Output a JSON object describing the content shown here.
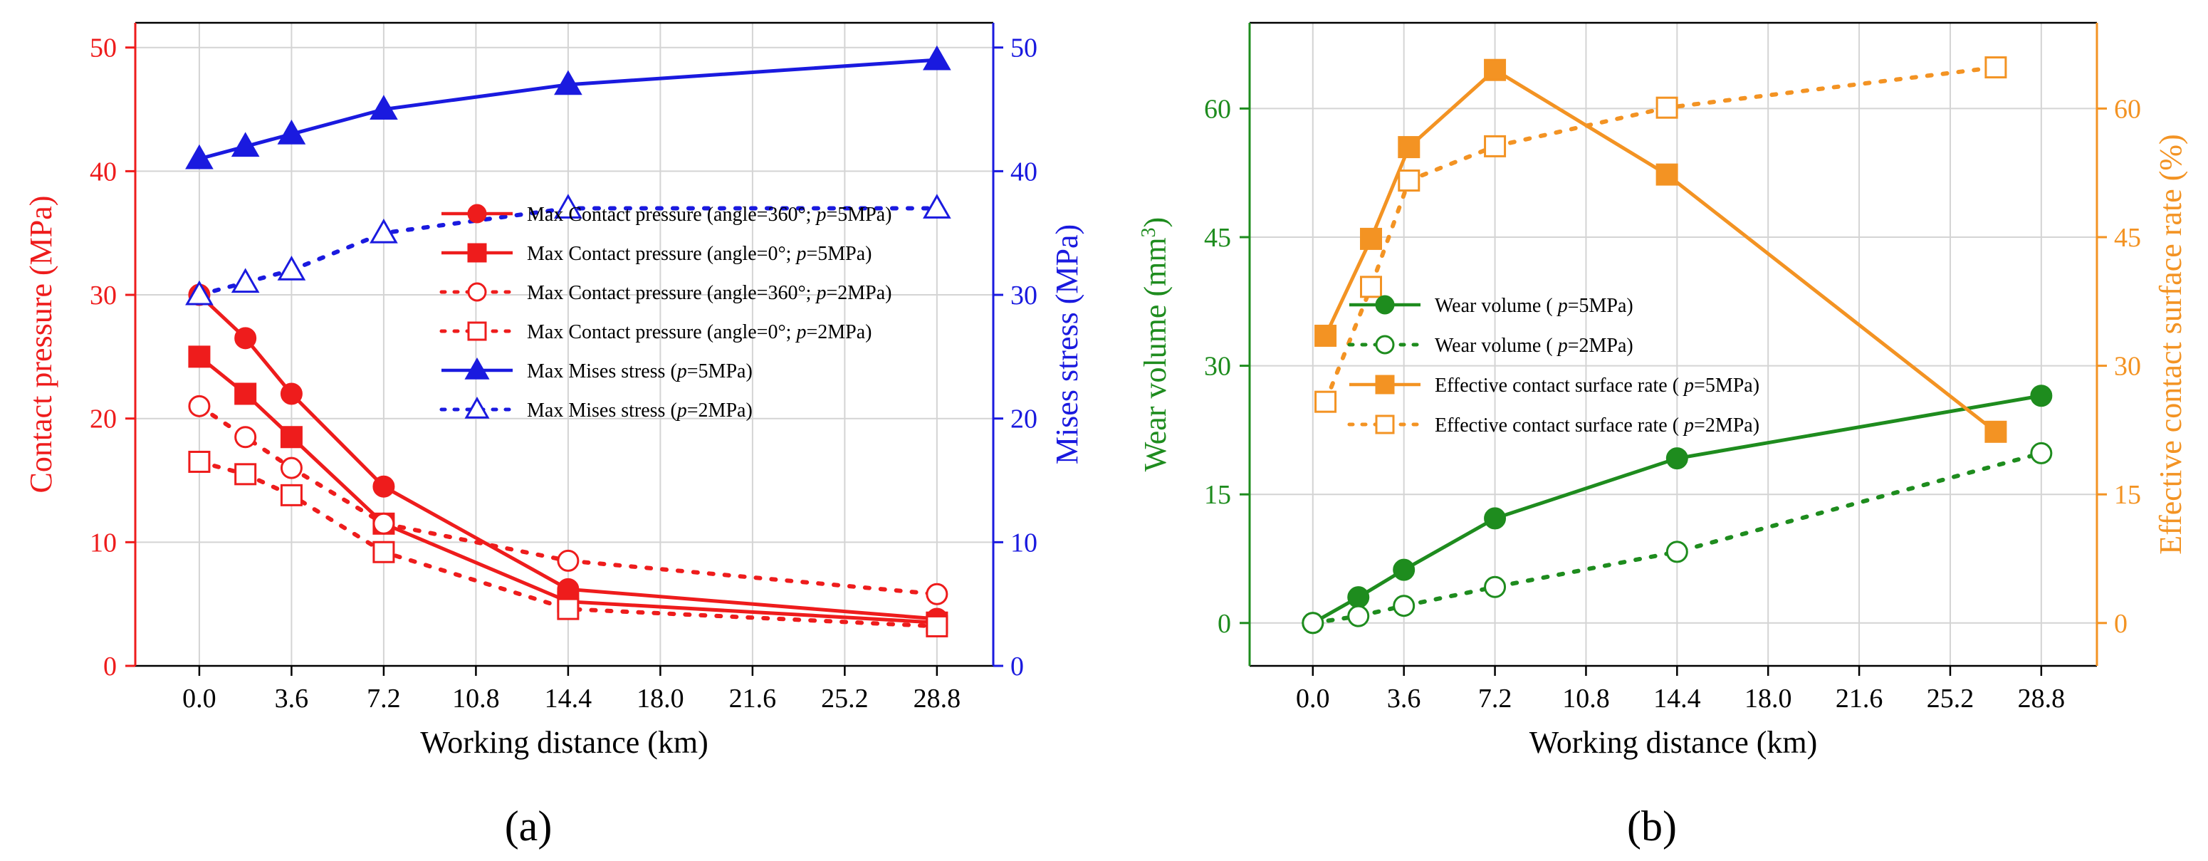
{
  "panels": [
    {
      "label": "(a)",
      "chart_data": {
        "type": "line",
        "xlabel": "Working distance (km)",
        "ylabel": "Contact pressure (MPa)",
        "y2label": "Mises stress (MPa)",
        "xlim": [
          -2.5,
          31.0
        ],
        "ylim": [
          0,
          52
        ],
        "y2lim": [
          0,
          52
        ],
        "xticks": [
          0.0,
          3.6,
          7.2,
          10.8,
          14.4,
          18.0,
          21.6,
          25.2,
          28.8
        ],
        "xtick_labels": [
          "0.0",
          "3.6",
          "7.2",
          "10.8",
          "14.4",
          "18.0",
          "21.6",
          "25.2",
          "28.8"
        ],
        "yticks": [
          0,
          10,
          20,
          30,
          40,
          50
        ],
        "ytick_labels": [
          "0",
          "10",
          "20",
          "30",
          "40",
          "50"
        ],
        "y2ticks": [
          0,
          10,
          20,
          30,
          40,
          50
        ],
        "y2tick_labels": [
          "0",
          "10",
          "20",
          "30",
          "40",
          "50"
        ],
        "grid": true,
        "legend_position": "center-right",
        "colors": {
          "left_axis": "#ee1c1c",
          "right_axis": "#1a1adf"
        },
        "series": [
          {
            "name": "Max Contact pressure (angle=360°; p=5MPa)",
            "leg_pre": "Max Contact pressure (angle=360°; ",
            "leg_ital": "p",
            "leg_post": "=5MPa)",
            "axis": "left",
            "color": "#ee1c1c",
            "marker": "circle",
            "filled": true,
            "dashed": false,
            "x": [
              0.0,
              1.8,
              3.6,
              7.2,
              14.4,
              28.8
            ],
            "y": [
              30.0,
              26.5,
              22.0,
              14.5,
              6.2,
              3.8
            ]
          },
          {
            "name": "Max Contact pressure (angle=0°; p=5MPa)",
            "leg_pre": "Max Contact pressure (angle=0°; ",
            "leg_ital": "p",
            "leg_post": "=5MPa)",
            "axis": "left",
            "color": "#ee1c1c",
            "marker": "square",
            "filled": true,
            "dashed": false,
            "x": [
              0.0,
              1.8,
              3.6,
              7.2,
              14.4,
              28.8
            ],
            "y": [
              25.0,
              22.0,
              18.5,
              11.5,
              5.2,
              3.5
            ]
          },
          {
            "name": "Max Contact pressure (angle=360°; p=2MPa)",
            "leg_pre": "Max Contact pressure (angle=360°; ",
            "leg_ital": "p",
            "leg_post": "=2MPa)",
            "axis": "left",
            "color": "#ee1c1c",
            "marker": "circle",
            "filled": false,
            "dashed": true,
            "x": [
              0.0,
              1.8,
              3.6,
              7.2,
              14.4,
              28.8
            ],
            "y": [
              21.0,
              18.5,
              16.0,
              11.5,
              8.5,
              5.8
            ]
          },
          {
            "name": "Max Contact pressure (angle=0°; p=2MPa)",
            "leg_pre": "Max Contact pressure (angle=0°; ",
            "leg_ital": "p",
            "leg_post": "=2MPa)",
            "axis": "left",
            "color": "#ee1c1c",
            "marker": "square",
            "filled": false,
            "dashed": true,
            "x": [
              0.0,
              1.8,
              3.6,
              7.2,
              14.4,
              28.8
            ],
            "y": [
              16.5,
              15.5,
              13.8,
              9.2,
              4.6,
              3.2
            ]
          },
          {
            "name": "Max Mises stress (p=5MPa)",
            "leg_pre": "Max Mises stress (",
            "leg_ital": "p",
            "leg_post": "=5MPa)",
            "axis": "right",
            "color": "#1a1adf",
            "marker": "triangle",
            "filled": true,
            "dashed": false,
            "x": [
              0.0,
              1.8,
              3.6,
              7.2,
              14.4,
              28.8
            ],
            "y": [
              41.0,
              42.0,
              43.0,
              45.0,
              47.0,
              49.0
            ]
          },
          {
            "name": "Max Mises stress (p=2MPa)",
            "leg_pre": "Max Mises stress (",
            "leg_ital": "p",
            "leg_post": "=2MPa)",
            "axis": "right",
            "color": "#1a1adf",
            "marker": "triangle",
            "filled": false,
            "dashed": true,
            "x": [
              0.0,
              1.8,
              3.6,
              7.2,
              14.4,
              28.8
            ],
            "y": [
              30.0,
              31.0,
              32.0,
              35.0,
              37.0,
              37.0
            ]
          }
        ]
      }
    },
    {
      "label": "(b)",
      "chart_data": {
        "type": "line",
        "xlabel": "Working distance (km)",
        "ylabel": "Wear volume (mm³)",
        "ylabel_pre": "Wear volume (mm",
        "ylabel_sup": "3",
        "ylabel_post": ")",
        "y2label": "Effective contact surface rate (%)",
        "xlim": [
          -2.5,
          31.0
        ],
        "ylim": [
          -5,
          70
        ],
        "y2lim": [
          -5,
          70
        ],
        "xticks": [
          0.0,
          3.6,
          7.2,
          10.8,
          14.4,
          18.0,
          21.6,
          25.2,
          28.8
        ],
        "xtick_labels": [
          "0.0",
          "3.6",
          "7.2",
          "10.8",
          "14.4",
          "18.0",
          "21.6",
          "25.2",
          "28.8"
        ],
        "yticks": [
          0,
          15,
          30,
          45,
          60
        ],
        "ytick_labels": [
          "0",
          "15",
          "30",
          "45",
          "60"
        ],
        "y2ticks": [
          0,
          15,
          30,
          45,
          60
        ],
        "y2tick_labels": [
          "0",
          "15",
          "30",
          "45",
          "60"
        ],
        "grid": true,
        "legend_position": "center",
        "colors": {
          "left_axis": "#1e8c1e",
          "right_axis": "#f39323"
        },
        "series": [
          {
            "name": "Wear volume ( p=5MPa)",
            "leg_pre": "Wear volume ( ",
            "leg_ital": "p",
            "leg_post": "=5MPa)",
            "axis": "left",
            "color": "#1e8c1e",
            "marker": "circle",
            "filled": true,
            "dashed": false,
            "x": [
              0.0,
              1.8,
              3.6,
              7.2,
              14.4,
              28.8
            ],
            "y": [
              0.0,
              3.0,
              6.2,
              12.2,
              19.2,
              26.5
            ]
          },
          {
            "name": "Wear volume ( p=2MPa)",
            "leg_pre": "Wear volume ( ",
            "leg_ital": "p",
            "leg_post": "=2MPa)",
            "axis": "left",
            "color": "#1e8c1e",
            "marker": "circle",
            "filled": false,
            "dashed": true,
            "x": [
              0.0,
              1.8,
              3.6,
              7.2,
              14.4,
              28.8
            ],
            "y": [
              0.0,
              0.8,
              2.0,
              4.2,
              8.3,
              19.8
            ]
          },
          {
            "name": "Effective contact surface rate ( p=5MPa)",
            "leg_pre": "Effective contact surface rate ( ",
            "leg_ital": "p",
            "leg_post": "=5MPa)",
            "axis": "right",
            "color": "#f39323",
            "marker": "square",
            "filled": true,
            "dashed": false,
            "x": [
              0.5,
              2.3,
              3.8,
              7.2,
              14.0,
              27.0
            ],
            "y": [
              33.5,
              44.8,
              55.5,
              64.5,
              52.3,
              22.3
            ]
          },
          {
            "name": "Effective contact surface rate ( p=2MPa)",
            "leg_pre": "Effective contact surface rate ( ",
            "leg_ital": "p",
            "leg_post": "=2MPa)",
            "axis": "right",
            "color": "#f39323",
            "marker": "square",
            "filled": false,
            "dashed": true,
            "x": [
              0.5,
              2.3,
              3.8,
              7.2,
              14.0,
              27.0
            ],
            "y": [
              25.8,
              39.2,
              51.6,
              55.6,
              60.1,
              64.8
            ]
          }
        ]
      }
    }
  ]
}
